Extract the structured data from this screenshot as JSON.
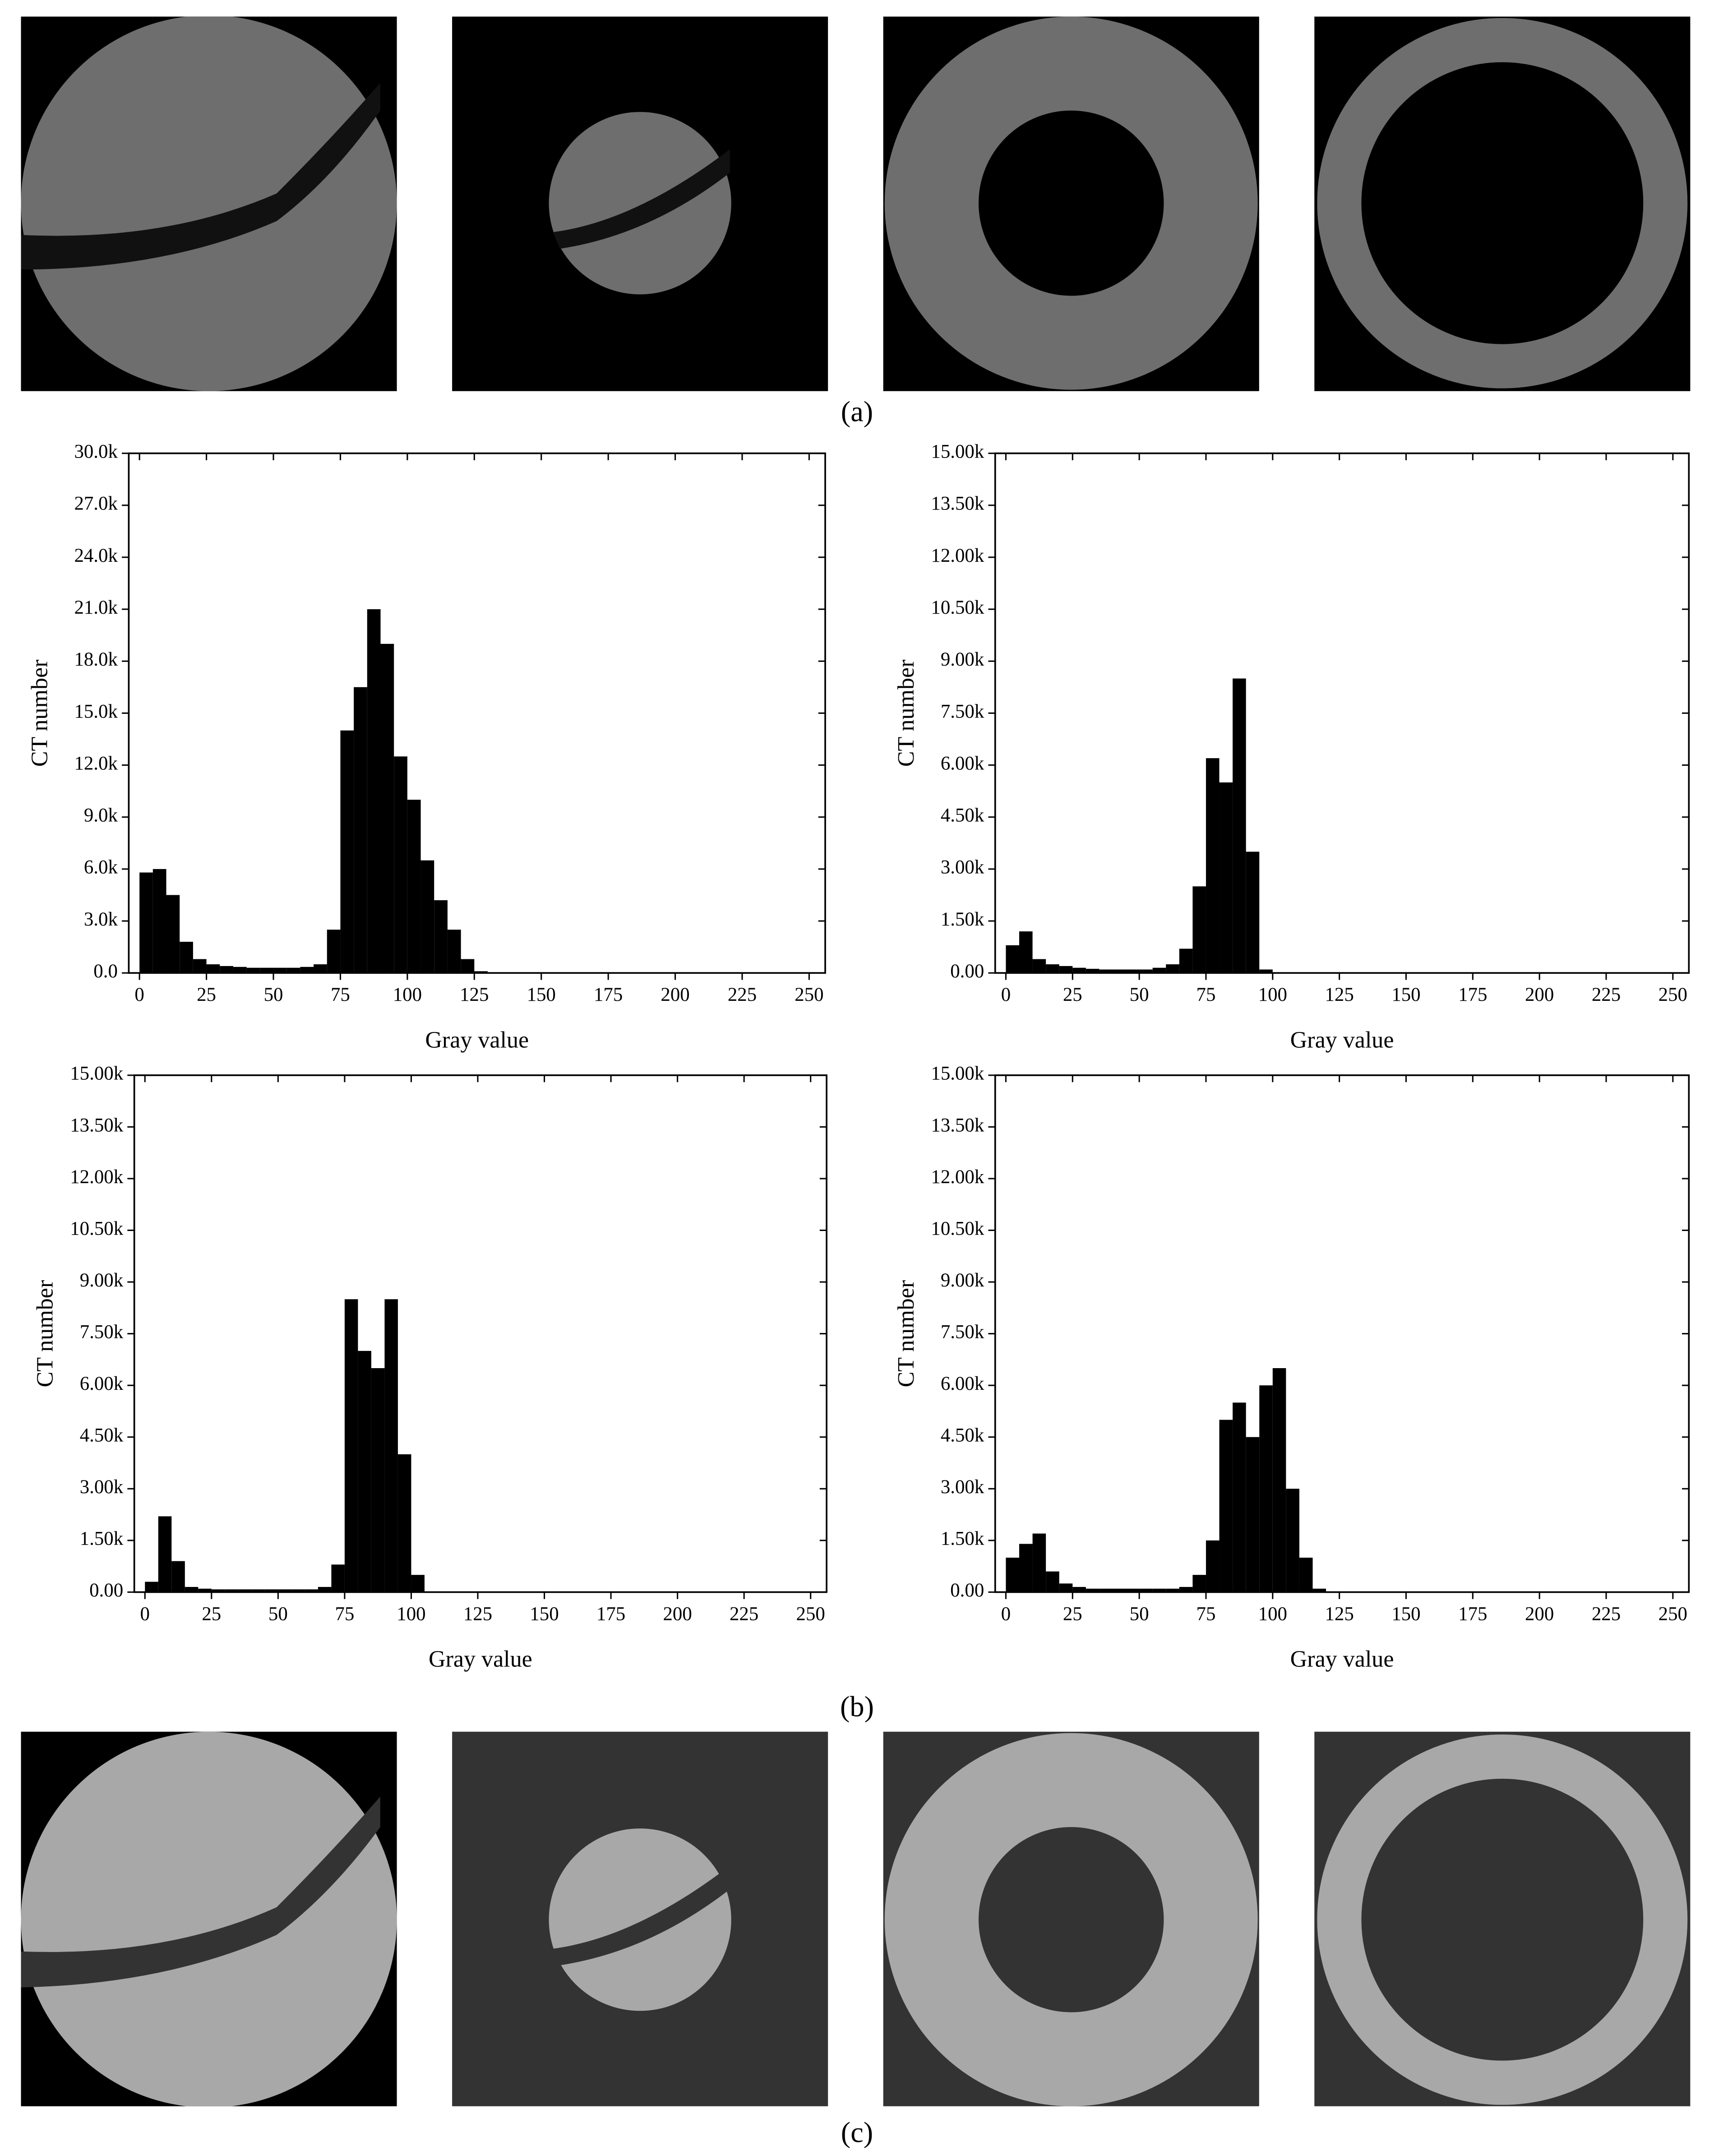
{
  "figure": {
    "panel_labels": [
      "(a)",
      "(b)",
      "(c)"
    ]
  },
  "chart_data": [
    {
      "type": "histogram",
      "x_label": "Gray value",
      "y_label": "CT number",
      "color": "#000000",
      "bins": [
        0,
        5,
        10,
        15,
        20,
        25,
        30,
        35,
        40,
        45,
        50,
        55,
        60,
        65,
        70,
        75,
        80,
        85,
        90,
        95,
        100,
        105,
        110,
        115,
        120,
        125,
        130,
        135,
        140,
        145,
        150,
        155,
        160,
        165,
        170,
        175,
        180,
        185,
        190,
        195,
        200,
        205,
        210,
        215,
        220,
        225,
        230,
        235,
        240,
        245,
        250,
        255
      ],
      "values": [
        5800,
        6000,
        4500,
        1800,
        800,
        500,
        400,
        350,
        300,
        300,
        300,
        300,
        350,
        500,
        2500,
        14000,
        16500,
        21000,
        19000,
        12500,
        10000,
        6500,
        4200,
        2500,
        800,
        100,
        0,
        0,
        0,
        0,
        0,
        0,
        0,
        0,
        0,
        0,
        0,
        0,
        0,
        0,
        0,
        0,
        0,
        0,
        0,
        0,
        0,
        0,
        0,
        0,
        0
      ],
      "xlim": [
        -4,
        256
      ],
      "xticks": [
        0,
        25,
        50,
        75,
        100,
        125,
        150,
        175,
        200,
        225,
        250
      ],
      "ylim": [
        0,
        30000
      ],
      "yticks": [
        {
          "value": 0,
          "label": "0.0"
        },
        {
          "value": 3000,
          "label": "3.0k"
        },
        {
          "value": 6000,
          "label": "6.0k"
        },
        {
          "value": 9000,
          "label": "9.0k"
        },
        {
          "value": 12000,
          "label": "12.0k"
        },
        {
          "value": 15000,
          "label": "15.0k"
        },
        {
          "value": 18000,
          "label": "18.0k"
        },
        {
          "value": 21000,
          "label": "21.0k"
        },
        {
          "value": 24000,
          "label": "24.0k"
        },
        {
          "value": 27000,
          "label": "27.0k"
        },
        {
          "value": 30000,
          "label": "30.0k"
        }
      ]
    },
    {
      "type": "histogram",
      "x_label": "Gray value",
      "y_label": "CT number",
      "color": "#000000",
      "bins": [
        0,
        5,
        10,
        15,
        20,
        25,
        30,
        35,
        40,
        45,
        50,
        55,
        60,
        65,
        70,
        75,
        80,
        85,
        90,
        95,
        100,
        105,
        110,
        115,
        120,
        125,
        130,
        135,
        140,
        145,
        150,
        155,
        160,
        165,
        170,
        175,
        180,
        185,
        190,
        195,
        200,
        205,
        210,
        215,
        220,
        225,
        230,
        235,
        240,
        245,
        250,
        255
      ],
      "values": [
        800,
        1200,
        400,
        250,
        200,
        150,
        120,
        100,
        100,
        100,
        100,
        150,
        250,
        700,
        2500,
        6200,
        5500,
        8500,
        3500,
        100,
        0,
        0,
        0,
        0,
        0,
        0,
        0,
        0,
        0,
        0,
        0,
        0,
        0,
        0,
        0,
        0,
        0,
        0,
        0,
        0,
        0,
        0,
        0,
        0,
        0,
        0,
        0,
        0,
        0,
        0,
        0
      ],
      "xlim": [
        -4,
        256
      ],
      "xticks": [
        0,
        25,
        50,
        75,
        100,
        125,
        150,
        175,
        200,
        225,
        250
      ],
      "ylim": [
        0,
        15000
      ],
      "yticks": [
        {
          "value": 0,
          "label": "0.00"
        },
        {
          "value": 1500,
          "label": "1.50k"
        },
        {
          "value": 3000,
          "label": "3.00k"
        },
        {
          "value": 4500,
          "label": "4.50k"
        },
        {
          "value": 6000,
          "label": "6.00k"
        },
        {
          "value": 7500,
          "label": "7.50k"
        },
        {
          "value": 9000,
          "label": "9.00k"
        },
        {
          "value": 10500,
          "label": "10.50k"
        },
        {
          "value": 12000,
          "label": "12.00k"
        },
        {
          "value": 13500,
          "label": "13.50k"
        },
        {
          "value": 15000,
          "label": "15.00k"
        }
      ]
    },
    {
      "type": "histogram",
      "x_label": "Gray value",
      "y_label": "CT number",
      "color": "#000000",
      "bins": [
        0,
        5,
        10,
        15,
        20,
        25,
        30,
        35,
        40,
        45,
        50,
        55,
        60,
        65,
        70,
        75,
        80,
        85,
        90,
        95,
        100,
        105,
        110,
        115,
        120,
        125,
        130,
        135,
        140,
        145,
        150,
        155,
        160,
        165,
        170,
        175,
        180,
        185,
        190,
        195,
        200,
        205,
        210,
        215,
        220,
        225,
        230,
        235,
        240,
        245,
        250,
        255
      ],
      "values": [
        300,
        2200,
        900,
        150,
        100,
        80,
        80,
        80,
        80,
        80,
        80,
        80,
        80,
        150,
        800,
        8500,
        7000,
        6500,
        8500,
        4000,
        500,
        0,
        0,
        0,
        0,
        0,
        0,
        0,
        0,
        0,
        0,
        0,
        0,
        0,
        0,
        0,
        0,
        0,
        0,
        0,
        0,
        0,
        0,
        0,
        0,
        0,
        0,
        0,
        0,
        0,
        0
      ],
      "xlim": [
        -4,
        256
      ],
      "xticks": [
        0,
        25,
        50,
        75,
        100,
        125,
        150,
        175,
        200,
        225,
        250
      ],
      "ylim": [
        0,
        15000
      ],
      "yticks": [
        {
          "value": 0,
          "label": "0.00"
        },
        {
          "value": 1500,
          "label": "1.50k"
        },
        {
          "value": 3000,
          "label": "3.00k"
        },
        {
          "value": 4500,
          "label": "4.50k"
        },
        {
          "value": 6000,
          "label": "6.00k"
        },
        {
          "value": 7500,
          "label": "7.50k"
        },
        {
          "value": 9000,
          "label": "9.00k"
        },
        {
          "value": 10500,
          "label": "10.50k"
        },
        {
          "value": 12000,
          "label": "12.00k"
        },
        {
          "value": 13500,
          "label": "13.50k"
        },
        {
          "value": 15000,
          "label": "15.00k"
        }
      ]
    },
    {
      "type": "histogram",
      "x_label": "Gray value",
      "y_label": "CT number",
      "color": "#000000",
      "bins": [
        0,
        5,
        10,
        15,
        20,
        25,
        30,
        35,
        40,
        45,
        50,
        55,
        60,
        65,
        70,
        75,
        80,
        85,
        90,
        95,
        100,
        105,
        110,
        115,
        120,
        125,
        130,
        135,
        140,
        145,
        150,
        155,
        160,
        165,
        170,
        175,
        180,
        185,
        190,
        195,
        200,
        205,
        210,
        215,
        220,
        225,
        230,
        235,
        240,
        245,
        250,
        255
      ],
      "values": [
        1000,
        1400,
        1700,
        600,
        250,
        150,
        100,
        100,
        100,
        100,
        100,
        100,
        100,
        150,
        500,
        1500,
        5000,
        5500,
        4500,
        6000,
        6500,
        3000,
        1000,
        100,
        0,
        0,
        0,
        0,
        0,
        0,
        0,
        0,
        0,
        0,
        0,
        0,
        0,
        0,
        0,
        0,
        0,
        0,
        0,
        0,
        0,
        0,
        0,
        0,
        0,
        0,
        0
      ],
      "xlim": [
        -4,
        256
      ],
      "xticks": [
        0,
        25,
        50,
        75,
        100,
        125,
        150,
        175,
        200,
        225,
        250
      ],
      "ylim": [
        0,
        15000
      ],
      "yticks": [
        {
          "value": 0,
          "label": "0.00"
        },
        {
          "value": 1500,
          "label": "1.50k"
        },
        {
          "value": 3000,
          "label": "3.00k"
        },
        {
          "value": 4500,
          "label": "4.50k"
        },
        {
          "value": 6000,
          "label": "6.00k"
        },
        {
          "value": 7500,
          "label": "7.50k"
        },
        {
          "value": 9000,
          "label": "9.00k"
        },
        {
          "value": 10500,
          "label": "10.50k"
        },
        {
          "value": 12000,
          "label": "12.00k"
        },
        {
          "value": 13500,
          "label": "13.50k"
        },
        {
          "value": 15000,
          "label": "15.00k"
        }
      ]
    }
  ]
}
